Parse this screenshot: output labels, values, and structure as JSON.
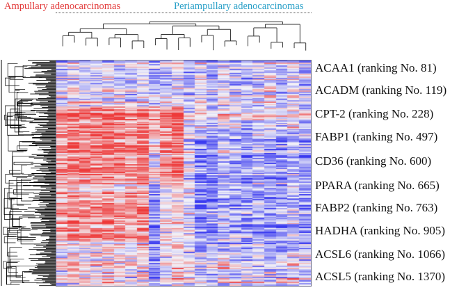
{
  "figure": {
    "group_labels": [
      {
        "text": "Ampullary adenocarcinomas",
        "color": "#e23a3a"
      },
      {
        "text": "Periampullary adenocarcinomas",
        "color": "#2aa0c8"
      }
    ]
  },
  "chart_data": {
    "type": "heatmap",
    "title": "",
    "groups": [
      "Ampullary adenocarcinomas",
      "Periampullary adenocarcinomas"
    ],
    "n_columns": 22,
    "color_scale": {
      "low": "#3a3af0",
      "mid": "#f2f2f8",
      "high": "#ee3a3a"
    },
    "row_dendrogram": true,
    "column_dendrogram": true,
    "gene_labels": [
      "ACAA1 (ranking No. 81)",
      "ACADM (ranking No. 119)",
      "CPT-2 (ranking No. 228)",
      "FABP1 (ranking No. 497)",
      "CD36 (ranking No. 600)",
      "PPARA (ranking No. 665)",
      "FABP2 (ranking No. 763)",
      "HADHA (ranking No. 905)",
      "ACSL6 (ranking No. 1066)",
      "ACSL5 (ranking No. 1370)"
    ]
  }
}
